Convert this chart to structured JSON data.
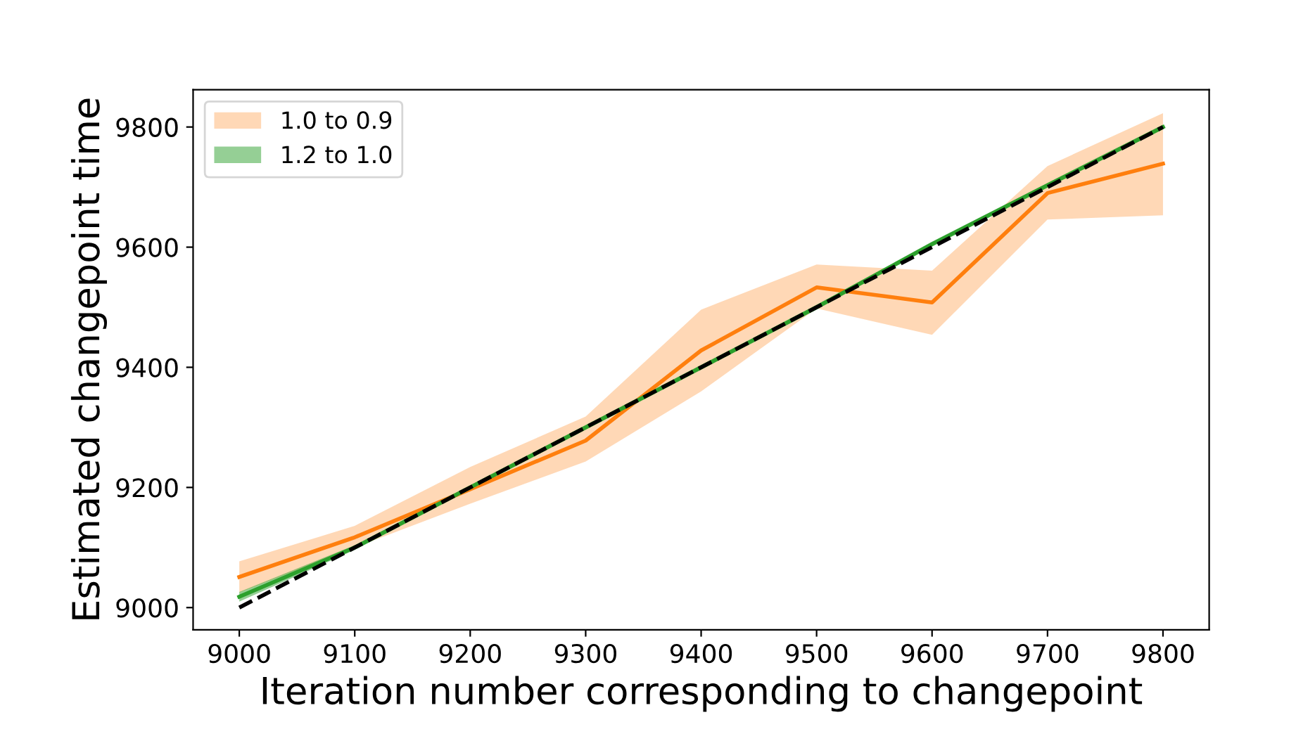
{
  "chart_data": {
    "type": "line",
    "xlabel": "Iteration number corresponding to changepoint",
    "ylabel": "Estimated changepoint time",
    "x": [
      9000,
      9100,
      9200,
      9300,
      9400,
      9500,
      9600,
      9700,
      9800
    ],
    "series": [
      {
        "name": "1.0 to 0.9",
        "color": "#ff7f0e",
        "values": [
          9051,
          9117,
          9197,
          9278,
          9428,
          9533,
          9508,
          9690,
          9739
        ],
        "lower": [
          9025,
          9100,
          9173,
          9243,
          9360,
          9498,
          9454,
          9646,
          9653
        ],
        "upper": [
          9077,
          9136,
          9234,
          9318,
          9496,
          9571,
          9561,
          9735,
          9823
        ]
      },
      {
        "name": "1.2 to 1.0",
        "color": "#2ca02c",
        "values": [
          9018,
          9100,
          9200,
          9300,
          9400,
          9500,
          9605,
          9703,
          9800
        ],
        "lower": [
          9010,
          9096,
          9196,
          9296,
          9396,
          9496,
          9601,
          9699,
          9796
        ],
        "upper": [
          9026,
          9104,
          9204,
          9304,
          9404,
          9504,
          9609,
          9707,
          9804
        ]
      },
      {
        "color": "#000000",
        "line_style": "dashed",
        "values": [
          9000,
          9100,
          9200,
          9300,
          9400,
          9500,
          9600,
          9700,
          9800
        ]
      }
    ],
    "xlim": [
      8960,
      9840
    ],
    "ylim": [
      8963,
      9862
    ],
    "xticks": [
      9000,
      9100,
      9200,
      9300,
      9400,
      9500,
      9600,
      9700,
      9800
    ],
    "yticks": [
      9000,
      9200,
      9400,
      9600,
      9800
    ],
    "legend": "top left",
    "grid": false
  }
}
